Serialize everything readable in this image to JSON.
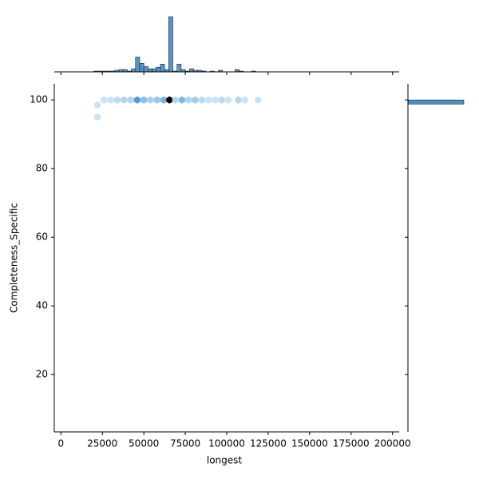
{
  "chart_data": {
    "type": "hexbin",
    "x_label": "longest",
    "y_label": "Completeness_Specific",
    "xlim": [
      -4000,
      204000
    ],
    "ylim": [
      3.3,
      104.7
    ],
    "xticks": [
      0,
      25000,
      50000,
      75000,
      100000,
      125000,
      150000,
      175000,
      200000
    ],
    "yticks": [
      20,
      40,
      60,
      80,
      100
    ],
    "colormap": [
      "#eef5fc",
      "#5aa5dc",
      "#000000"
    ],
    "hexbins": {
      "x": [
        22000,
        22000,
        26000,
        30000,
        34000,
        38000,
        42000,
        46000,
        50000,
        54000,
        58000,
        62000,
        65500,
        69000,
        73000,
        77000,
        81000,
        85000,
        89000,
        93000,
        97000,
        101000,
        107000,
        111000,
        119000
      ],
      "y": [
        98.5,
        95,
        100,
        100,
        100,
        100,
        100,
        100,
        100,
        100,
        100,
        100,
        100,
        100,
        100,
        100,
        100,
        100,
        100,
        100,
        100,
        100,
        100,
        100,
        100
      ],
      "counts": [
        1,
        1,
        1,
        1,
        2,
        3,
        3,
        20,
        8,
        4,
        6,
        12,
        71,
        3,
        10,
        3,
        5,
        2,
        1,
        1,
        2,
        1,
        3,
        1,
        1
      ]
    },
    "x_histogram": {
      "color": "#4c8fc4",
      "bins": [
        20000,
        22500,
        25000,
        27500,
        30000,
        32500,
        35000,
        37500,
        40000,
        42500,
        45000,
        47500,
        50000,
        52500,
        55000,
        57500,
        60000,
        62500,
        65000,
        67500,
        70000,
        72500,
        75000,
        77500,
        80000,
        82500,
        85000,
        87500,
        90000,
        92500,
        95000,
        97500,
        100000,
        102500,
        105000,
        107500,
        110000,
        112500,
        115000,
        117500,
        120000
      ],
      "counts": [
        1,
        1,
        1,
        1,
        1,
        2,
        3,
        3,
        1,
        4,
        19,
        11,
        7,
        4,
        4,
        6,
        10,
        3,
        71,
        1,
        10,
        3,
        1,
        4,
        2,
        2,
        1,
        0,
        1,
        0,
        2,
        0,
        0,
        0,
        3,
        1,
        0,
        0,
        1,
        0
      ]
    },
    "y_histogram": {
      "color": "#4c8fc4",
      "bins": [
        98.8,
        100
      ],
      "counts": [
        190
      ]
    }
  }
}
